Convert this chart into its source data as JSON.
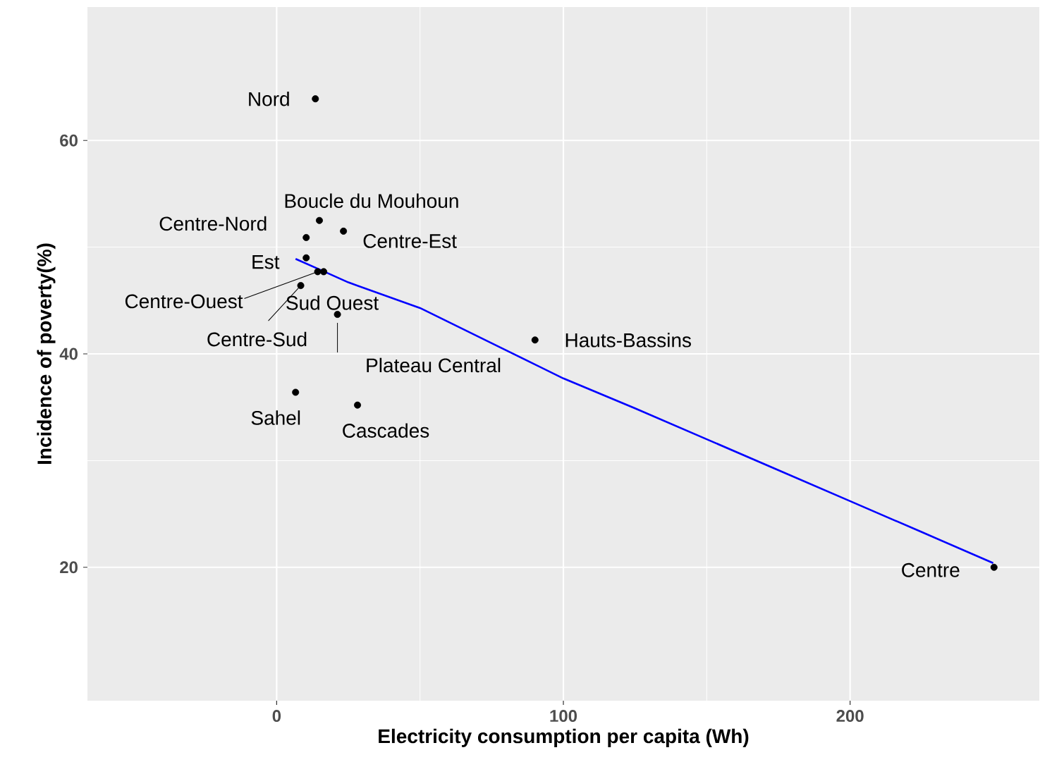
{
  "chart_data": {
    "type": "scatter",
    "xlabel": "Electricity consumption per capita (Wh)",
    "ylabel": "Incidence of poverty(%)",
    "xlim": [
      -66,
      266
    ],
    "ylim": [
      7.5,
      72.5
    ],
    "xticks": [
      0,
      100,
      200
    ],
    "yticks": [
      20,
      40,
      60
    ],
    "grid": true,
    "series": [
      {
        "color": "#000000",
        "marker": "circle",
        "x": [
          13.5,
          14.9,
          10.3,
          23.3,
          10.3,
          14.3,
          16.4,
          8.4,
          21.2,
          90.1,
          6.6,
          28.2,
          250.2
        ],
        "values": [
          63.9,
          52.5,
          50.9,
          51.5,
          49.0,
          47.7,
          47.7,
          46.4,
          43.7,
          41.3,
          36.4,
          35.2,
          20.0
        ]
      },
      {
        "type": "line",
        "color": "#0000ff",
        "marker": "none",
        "line_style": "solid",
        "x": [
          6.6,
          15,
          25,
          50,
          75,
          100,
          125,
          150,
          175,
          200,
          225,
          249.9
        ],
        "values": [
          48.9,
          47.9,
          46.7,
          44.3,
          41.0,
          37.7,
          34.9,
          32.0,
          29.1,
          26.2,
          23.3,
          20.4
        ]
      }
    ],
    "annotations": [
      {
        "text": "Nord",
        "x": 13.5,
        "y": 63.9
      },
      {
        "text": "Boucle du Mouhoun",
        "x": 14.9,
        "y": 52.5
      },
      {
        "text": "Centre-Nord",
        "x": 10.3,
        "y": 50.9
      },
      {
        "text": "Centre-Est",
        "x": 23.3,
        "y": 51.5
      },
      {
        "text": "Est",
        "x": 10.3,
        "y": 49.0
      },
      {
        "text": "Centre-Ouest",
        "x": 14.3,
        "y": 47.7
      },
      {
        "text": "Sud Ouest",
        "x": 16.4,
        "y": 47.7
      },
      {
        "text": "Centre-Sud",
        "x": 8.4,
        "y": 46.4
      },
      {
        "text": "Plateau Central",
        "x": 21.2,
        "y": 43.7
      },
      {
        "text": "Hauts-Bassins",
        "x": 90.1,
        "y": 41.3
      },
      {
        "text": "Sahel",
        "x": 6.6,
        "y": 36.4
      },
      {
        "text": "Cascades",
        "x": 28.2,
        "y": 35.2
      },
      {
        "text": "Centre",
        "x": 250.2,
        "y": 20.0
      }
    ]
  }
}
